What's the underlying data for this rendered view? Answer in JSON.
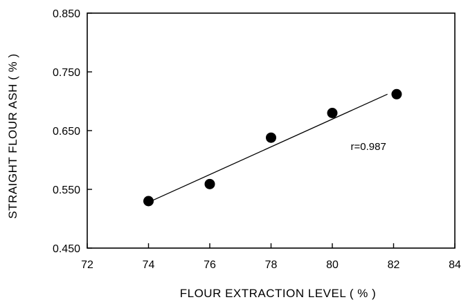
{
  "chart_data": {
    "type": "scatter",
    "title": "",
    "xlabel": "FLOUR EXTRACTION LEVEL ( % )",
    "ylabel": "STRAIGHT FLOUR ASH ( % )",
    "xlim": [
      72,
      84
    ],
    "ylim": [
      0.45,
      0.85
    ],
    "x_ticks": [
      "72",
      "74",
      "76",
      "78",
      "80",
      "82",
      "84"
    ],
    "y_ticks": [
      "0.450",
      "0.550",
      "0.650",
      "0.750",
      "0.850"
    ],
    "series": [
      {
        "points": [
          {
            "x": 74.0,
            "y": 0.53
          },
          {
            "x": 76.0,
            "y": 0.559
          },
          {
            "x": 78.0,
            "y": 0.638
          },
          {
            "x": 80.0,
            "y": 0.68
          },
          {
            "x": 82.1,
            "y": 0.712
          }
        ]
      }
    ],
    "trendline": {
      "x_start": 74.0,
      "y_start": 0.528,
      "x_end": 81.8,
      "y_end": 0.712
    },
    "annotations": [
      {
        "text": "r=0.987",
        "x": 80.6,
        "y": 0.617
      }
    ],
    "grid": false,
    "legend": "none",
    "colors": {
      "marker": "#000000",
      "line": "#000000"
    }
  }
}
